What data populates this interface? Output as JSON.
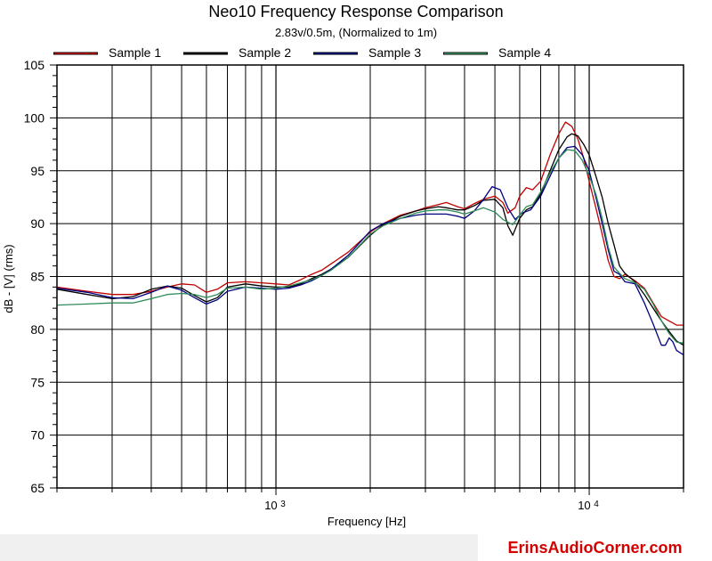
{
  "chart_data": {
    "type": "line",
    "title": "Neo10 Frequency Response Comparison",
    "subtitle": "2.83v/0.5m, (Normalized to 1m)",
    "xlabel": "Frequency [Hz]",
    "ylabel": "dB - [V]  (rms)",
    "x_scale": "log",
    "xlim": [
      200,
      20000
    ],
    "ylim": [
      65,
      105
    ],
    "yticks": [
      65,
      70,
      75,
      80,
      85,
      90,
      95,
      100,
      105
    ],
    "yticklabels": [
      "65",
      "70",
      "75",
      "80",
      "85",
      "90",
      "95",
      "100",
      "105"
    ],
    "xticks": [
      1000,
      10000
    ],
    "xticklabels": [
      {
        "base": "10",
        "exp": "3"
      },
      {
        "base": "10",
        "exp": "4"
      }
    ],
    "grid": true,
    "legend_position": "top",
    "series": [
      {
        "name": "Sample 1",
        "color": "#c00000",
        "points": [
          [
            200,
            84.0
          ],
          [
            250,
            83.6
          ],
          [
            300,
            83.3
          ],
          [
            350,
            83.3
          ],
          [
            400,
            83.6
          ],
          [
            450,
            84.0
          ],
          [
            500,
            84.3
          ],
          [
            550,
            84.2
          ],
          [
            600,
            83.5
          ],
          [
            650,
            83.8
          ],
          [
            700,
            84.4
          ],
          [
            800,
            84.5
          ],
          [
            900,
            84.4
          ],
          [
            1000,
            84.3
          ],
          [
            1100,
            84.2
          ],
          [
            1200,
            84.7
          ],
          [
            1300,
            85.2
          ],
          [
            1400,
            85.6
          ],
          [
            1500,
            86.2
          ],
          [
            1700,
            87.3
          ],
          [
            2000,
            89.2
          ],
          [
            2200,
            90.0
          ],
          [
            2500,
            90.8
          ],
          [
            2800,
            91.2
          ],
          [
            3000,
            91.5
          ],
          [
            3300,
            91.8
          ],
          [
            3500,
            92.0
          ],
          [
            3800,
            91.6
          ],
          [
            4000,
            91.4
          ],
          [
            4300,
            91.9
          ],
          [
            4600,
            92.3
          ],
          [
            5000,
            92.6
          ],
          [
            5300,
            92.0
          ],
          [
            5500,
            91.0
          ],
          [
            5800,
            91.5
          ],
          [
            6000,
            92.6
          ],
          [
            6300,
            93.4
          ],
          [
            6600,
            93.2
          ],
          [
            7000,
            94.0
          ],
          [
            7500,
            96.5
          ],
          [
            8000,
            98.5
          ],
          [
            8400,
            99.6
          ],
          [
            8800,
            99.2
          ],
          [
            9200,
            98.0
          ],
          [
            9600,
            96.2
          ],
          [
            10000,
            94.0
          ],
          [
            10500,
            91.5
          ],
          [
            11000,
            89.0
          ],
          [
            11500,
            86.5
          ],
          [
            12000,
            85.0
          ],
          [
            12500,
            84.8
          ],
          [
            13000,
            85.2
          ],
          [
            14000,
            84.6
          ],
          [
            15000,
            83.9
          ],
          [
            16000,
            82.5
          ],
          [
            17000,
            81.2
          ],
          [
            18000,
            80.8
          ],
          [
            19000,
            80.4
          ],
          [
            20000,
            80.4
          ]
        ]
      },
      {
        "name": "Sample 2",
        "color": "#000000",
        "points": [
          [
            200,
            83.8
          ],
          [
            250,
            83.3
          ],
          [
            300,
            82.9
          ],
          [
            350,
            83.1
          ],
          [
            400,
            83.8
          ],
          [
            450,
            84.1
          ],
          [
            500,
            83.9
          ],
          [
            550,
            83.2
          ],
          [
            600,
            82.6
          ],
          [
            650,
            83.0
          ],
          [
            700,
            84.0
          ],
          [
            800,
            84.3
          ],
          [
            900,
            84.1
          ],
          [
            1000,
            84.0
          ],
          [
            1100,
            84.0
          ],
          [
            1200,
            84.3
          ],
          [
            1300,
            84.8
          ],
          [
            1400,
            85.2
          ],
          [
            1500,
            85.7
          ],
          [
            1700,
            86.8
          ],
          [
            2000,
            88.9
          ],
          [
            2200,
            89.9
          ],
          [
            2500,
            90.7
          ],
          [
            2800,
            91.2
          ],
          [
            3000,
            91.4
          ],
          [
            3300,
            91.6
          ],
          [
            3500,
            91.5
          ],
          [
            3800,
            91.3
          ],
          [
            4000,
            91.3
          ],
          [
            4300,
            91.7
          ],
          [
            4600,
            92.2
          ],
          [
            5000,
            92.3
          ],
          [
            5300,
            91.5
          ],
          [
            5500,
            89.8
          ],
          [
            5700,
            88.9
          ],
          [
            6000,
            90.5
          ],
          [
            6300,
            91.3
          ],
          [
            6600,
            91.6
          ],
          [
            7000,
            92.8
          ],
          [
            7500,
            95.0
          ],
          [
            8000,
            97.0
          ],
          [
            8500,
            98.2
          ],
          [
            8800,
            98.5
          ],
          [
            9200,
            98.3
          ],
          [
            9600,
            97.5
          ],
          [
            10000,
            96.5
          ],
          [
            10500,
            94.5
          ],
          [
            11000,
            92.5
          ],
          [
            11500,
            90.0
          ],
          [
            12000,
            88.0
          ],
          [
            12500,
            86.0
          ],
          [
            13000,
            85.3
          ],
          [
            14000,
            84.5
          ],
          [
            15000,
            83.3
          ],
          [
            16000,
            82.0
          ],
          [
            17000,
            80.8
          ],
          [
            18000,
            79.8
          ],
          [
            19000,
            78.9
          ],
          [
            20000,
            78.5
          ]
        ]
      },
      {
        "name": "Sample 3",
        "color": "#000080",
        "points": [
          [
            200,
            83.9
          ],
          [
            250,
            83.5
          ],
          [
            300,
            83.0
          ],
          [
            350,
            82.9
          ],
          [
            400,
            83.5
          ],
          [
            450,
            84.1
          ],
          [
            500,
            83.7
          ],
          [
            550,
            83.0
          ],
          [
            600,
            82.4
          ],
          [
            650,
            82.8
          ],
          [
            700,
            83.6
          ],
          [
            800,
            84.0
          ],
          [
            900,
            83.9
          ],
          [
            1000,
            83.8
          ],
          [
            1100,
            83.9
          ],
          [
            1200,
            84.2
          ],
          [
            1300,
            84.6
          ],
          [
            1400,
            85.1
          ],
          [
            1500,
            85.7
          ],
          [
            1700,
            87.0
          ],
          [
            2000,
            89.3
          ],
          [
            2200,
            90.0
          ],
          [
            2500,
            90.5
          ],
          [
            2800,
            90.8
          ],
          [
            3000,
            90.9
          ],
          [
            3300,
            90.9
          ],
          [
            3500,
            90.9
          ],
          [
            3800,
            90.7
          ],
          [
            4000,
            90.5
          ],
          [
            4300,
            91.2
          ],
          [
            4600,
            92.3
          ],
          [
            4900,
            93.5
          ],
          [
            5200,
            93.2
          ],
          [
            5500,
            91.5
          ],
          [
            5800,
            90.4
          ],
          [
            6100,
            91.0
          ],
          [
            6500,
            91.3
          ],
          [
            7000,
            92.6
          ],
          [
            7500,
            94.5
          ],
          [
            8000,
            96.2
          ],
          [
            8500,
            97.2
          ],
          [
            9000,
            97.3
          ],
          [
            9500,
            96.5
          ],
          [
            10000,
            95.0
          ],
          [
            10500,
            92.5
          ],
          [
            11000,
            90.0
          ],
          [
            11500,
            87.5
          ],
          [
            12000,
            85.5
          ],
          [
            12500,
            85.2
          ],
          [
            13000,
            84.5
          ],
          [
            14000,
            84.3
          ],
          [
            15000,
            82.5
          ],
          [
            16000,
            80.5
          ],
          [
            17000,
            78.5
          ],
          [
            17500,
            78.5
          ],
          [
            18000,
            79.2
          ],
          [
            18500,
            78.8
          ],
          [
            19000,
            78.0
          ],
          [
            20000,
            77.6
          ]
        ]
      },
      {
        "name": "Sample 4",
        "color": "#2e8b57",
        "points": [
          [
            200,
            82.3
          ],
          [
            250,
            82.4
          ],
          [
            300,
            82.5
          ],
          [
            350,
            82.5
          ],
          [
            400,
            82.9
          ],
          [
            450,
            83.3
          ],
          [
            500,
            83.4
          ],
          [
            550,
            83.3
          ],
          [
            600,
            83.0
          ],
          [
            650,
            83.3
          ],
          [
            700,
            83.9
          ],
          [
            800,
            84.0
          ],
          [
            900,
            83.8
          ],
          [
            1000,
            83.9
          ],
          [
            1100,
            84.1
          ],
          [
            1200,
            84.4
          ],
          [
            1300,
            84.7
          ],
          [
            1400,
            85.1
          ],
          [
            1500,
            85.6
          ],
          [
            1700,
            86.8
          ],
          [
            2000,
            89.0
          ],
          [
            2200,
            89.8
          ],
          [
            2500,
            90.5
          ],
          [
            2800,
            91.0
          ],
          [
            3000,
            91.2
          ],
          [
            3300,
            91.3
          ],
          [
            3500,
            91.3
          ],
          [
            3800,
            91.1
          ],
          [
            4000,
            90.9
          ],
          [
            4300,
            91.2
          ],
          [
            4600,
            91.5
          ],
          [
            5000,
            91.1
          ],
          [
            5300,
            90.4
          ],
          [
            5700,
            89.9
          ],
          [
            6000,
            90.8
          ],
          [
            6300,
            91.6
          ],
          [
            6600,
            91.8
          ],
          [
            7000,
            93.0
          ],
          [
            7500,
            94.8
          ],
          [
            8000,
            96.2
          ],
          [
            8500,
            97.0
          ],
          [
            9000,
            96.9
          ],
          [
            9500,
            96.0
          ],
          [
            10000,
            94.5
          ],
          [
            10500,
            92.8
          ],
          [
            11000,
            90.5
          ],
          [
            11500,
            87.8
          ],
          [
            12000,
            85.9
          ],
          [
            12500,
            85.3
          ],
          [
            13000,
            84.8
          ],
          [
            14000,
            84.4
          ],
          [
            15000,
            83.8
          ],
          [
            16000,
            82.4
          ],
          [
            17000,
            80.8
          ],
          [
            18000,
            79.6
          ],
          [
            19000,
            78.8
          ],
          [
            20000,
            78.7
          ]
        ]
      }
    ]
  },
  "watermark": "ErinsAudioCorner.com"
}
